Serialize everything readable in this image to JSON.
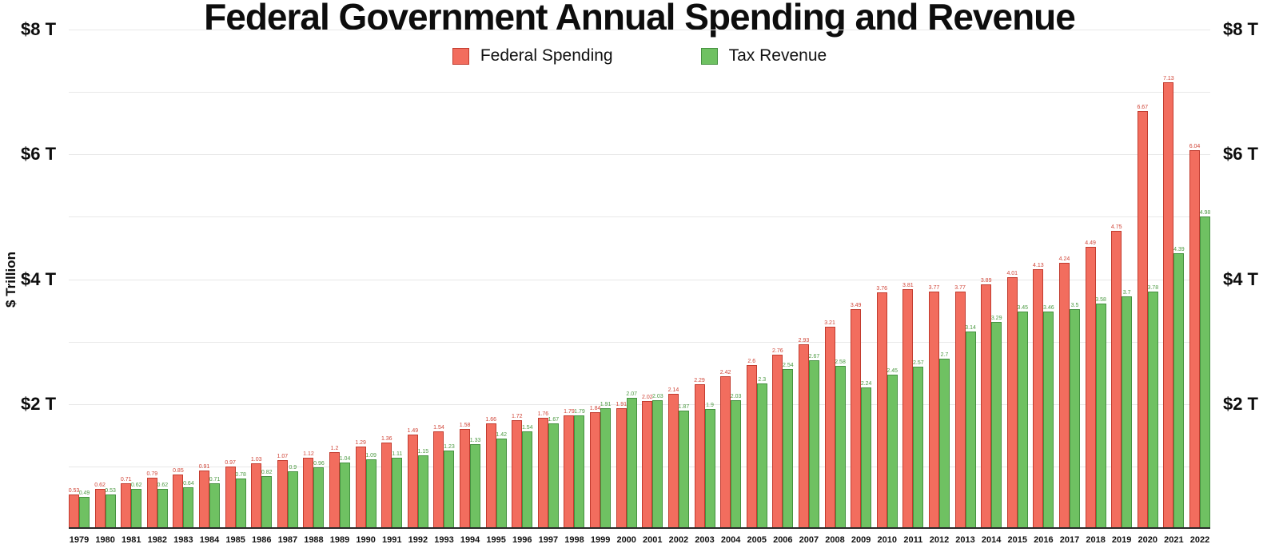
{
  "title": "Federal Government Annual Spending and Revenue",
  "y_axis": {
    "title": "$ Trillion",
    "ticks": [
      {
        "label": "$8 T",
        "value": 8
      },
      {
        "label": "$6 T",
        "value": 6
      },
      {
        "label": "$4 T",
        "value": 4
      },
      {
        "label": "$2 T",
        "value": 2
      }
    ]
  },
  "legend": {
    "items": [
      {
        "label": "Federal Spending",
        "color": "#f26d5e",
        "border": "#c23b2e"
      },
      {
        "label": "Tax Revenue",
        "color": "#6fc162",
        "border": "#459140"
      }
    ]
  },
  "chart_data": {
    "type": "bar",
    "title": "Federal Government Annual Spending and Revenue",
    "xlabel": "",
    "ylabel": "$ Trillion",
    "ylim": [
      0,
      8
    ],
    "grid": true,
    "legend_position": "top-center",
    "categories": [
      "1979",
      "1980",
      "1981",
      "1982",
      "1983",
      "1984",
      "1985",
      "1986",
      "1987",
      "1988",
      "1989",
      "1990",
      "1991",
      "1992",
      "1993",
      "1994",
      "1995",
      "1996",
      "1997",
      "1998",
      "1999",
      "2000",
      "2001",
      "2002",
      "2003",
      "2004",
      "2005",
      "2006",
      "2007",
      "2008",
      "2009",
      "2010",
      "2011",
      "2012",
      "2013",
      "2014",
      "2015",
      "2016",
      "2017",
      "2018",
      "2019",
      "2020",
      "2021",
      "2022"
    ],
    "series": [
      {
        "name": "Federal Spending",
        "color": "#f26d5e",
        "values": [
          0.53,
          0.62,
          0.71,
          0.79,
          0.85,
          0.91,
          0.97,
          1.03,
          1.07,
          1.12,
          1.2,
          1.29,
          1.36,
          1.49,
          1.54,
          1.58,
          1.66,
          1.72,
          1.76,
          1.79,
          1.84,
          1.91,
          2.02,
          2.14,
          2.29,
          2.42,
          2.6,
          2.76,
          2.93,
          3.21,
          3.49,
          3.76,
          3.81,
          3.77,
          3.77,
          3.89,
          4.01,
          4.13,
          4.24,
          4.49,
          4.75,
          6.67,
          7.13,
          6.04
        ]
      },
      {
        "name": "Tax Revenue",
        "color": "#6fc162",
        "values": [
          0.49,
          0.53,
          0.62,
          0.62,
          0.64,
          0.71,
          0.78,
          0.82,
          0.9,
          0.96,
          1.04,
          1.09,
          1.11,
          1.15,
          1.23,
          1.33,
          1.42,
          1.54,
          1.67,
          1.79,
          1.91,
          2.07,
          2.03,
          1.87,
          1.9,
          2.03,
          2.3,
          2.54,
          2.67,
          2.58,
          2.24,
          2.45,
          2.57,
          2.7,
          3.14,
          3.29,
          3.45,
          3.46,
          3.5,
          3.58,
          3.7,
          3.78,
          4.39,
          4.98
        ]
      }
    ]
  }
}
